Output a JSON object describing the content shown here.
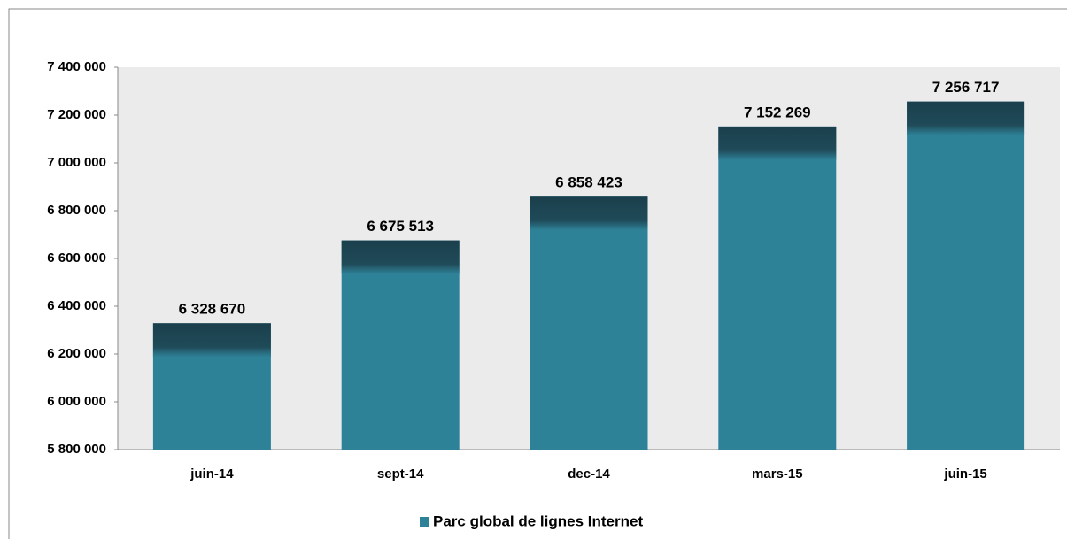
{
  "chart_data": {
    "type": "bar",
    "categories": [
      "juin-14",
      "sept-14",
      "dec-14",
      "mars-15",
      "juin-15"
    ],
    "series": [
      {
        "name": "Parc global de lignes Internet",
        "color": "#2e8298",
        "values": [
          6328670,
          6675513,
          6858423,
          7152269,
          7256717
        ],
        "value_labels": [
          "6 328 670",
          "6 675 513",
          "6 858 423",
          "7 152 269",
          "7 256 717"
        ]
      }
    ],
    "ylim": [
      5800000,
      7400000
    ],
    "yticks": [
      {
        "value": 5800000,
        "label": "5 800 000"
      },
      {
        "value": 6000000,
        "label": "6 000 000"
      },
      {
        "value": 6200000,
        "label": "6 200 000"
      },
      {
        "value": 6400000,
        "label": "6 400 000"
      },
      {
        "value": 6600000,
        "label": "6 600 000"
      },
      {
        "value": 6800000,
        "label": "6 800 000"
      },
      {
        "value": 7000000,
        "label": "7 000 000"
      },
      {
        "value": 7200000,
        "label": "7 200 000"
      },
      {
        "value": 7400000,
        "label": "7 400 000"
      }
    ],
    "legend": "bottom"
  }
}
